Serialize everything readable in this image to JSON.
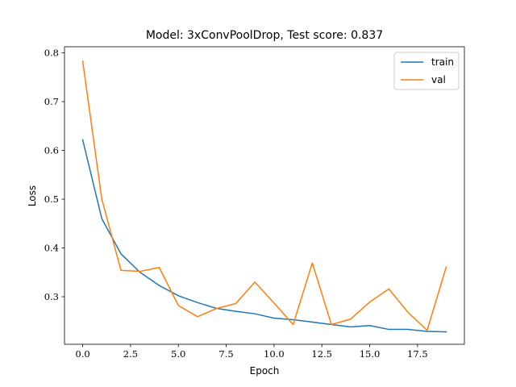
{
  "chart_data": {
    "type": "line",
    "title": "Model: 3xConvPoolDrop, Test score: 0.837",
    "xlabel": "Epoch",
    "ylabel": "Loss",
    "xlim": [
      -0.95,
      19.95
    ],
    "ylim": [
      0.2025,
      0.8125
    ],
    "xticks": [
      0.0,
      2.5,
      5.0,
      7.5,
      10.0,
      12.5,
      15.0,
      17.5
    ],
    "xtick_labels": [
      "0.0",
      "2.5",
      "5.0",
      "7.5",
      "10.0",
      "12.5",
      "15.0",
      "17.5"
    ],
    "yticks": [
      0.3,
      0.4,
      0.5,
      0.6,
      0.7,
      0.8
    ],
    "ytick_labels": [
      "0.3",
      "0.4",
      "0.5",
      "0.6",
      "0.7",
      "0.8"
    ],
    "grid": false,
    "legend_position": "top-right",
    "x": [
      0,
      1,
      2,
      3,
      4,
      5,
      6,
      7,
      8,
      9,
      10,
      11,
      12,
      13,
      14,
      15,
      16,
      17,
      18,
      19
    ],
    "series": [
      {
        "name": "train",
        "color": "#1f77b4",
        "values": [
          0.622,
          0.46,
          0.388,
          0.35,
          0.323,
          0.302,
          0.288,
          0.276,
          0.27,
          0.265,
          0.256,
          0.253,
          0.248,
          0.243,
          0.238,
          0.241,
          0.233,
          0.233,
          0.229,
          0.228
        ]
      },
      {
        "name": "val",
        "color": "#ff7f0e",
        "values": [
          0.783,
          0.5,
          0.354,
          0.352,
          0.36,
          0.282,
          0.259,
          0.276,
          0.286,
          0.33,
          0.287,
          0.243,
          0.369,
          0.243,
          0.254,
          0.289,
          0.316,
          0.268,
          0.231,
          0.361
        ]
      }
    ]
  }
}
